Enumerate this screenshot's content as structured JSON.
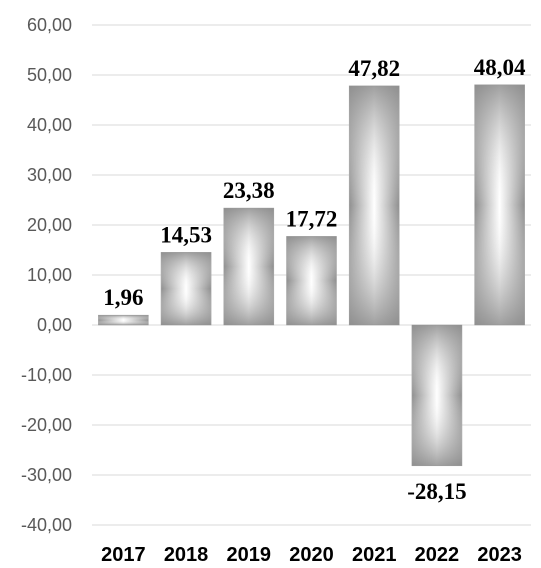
{
  "chart_data": {
    "type": "bar",
    "title": "",
    "xlabel": "",
    "ylabel": "",
    "categories": [
      "2017",
      "2018",
      "2019",
      "2020",
      "2021",
      "2022",
      "2023"
    ],
    "values": [
      1.96,
      14.53,
      23.38,
      17.72,
      47.82,
      -28.15,
      48.04
    ],
    "data_labels": [
      "1,96",
      "14,53",
      "23,38",
      "17,72",
      "47,82",
      "-28,15",
      "48,04"
    ],
    "yticks": [
      60,
      50,
      40,
      30,
      20,
      10,
      0,
      -10,
      -20,
      -30,
      -40
    ],
    "ytick_labels": [
      "60,00",
      "50,00",
      "40,00",
      "30,00",
      "20,00",
      "10,00",
      "0,00",
      "-10,00",
      "-20,00",
      "-30,00",
      "-40,00"
    ],
    "ylim": [
      -40,
      60
    ],
    "grid": true,
    "legend": "none",
    "colors": {
      "bar_edge": "#9a9a9a",
      "bar_center": "#ffffff",
      "grid": "#d9d9d9",
      "tick_text": "#595959",
      "label_text": "#000000"
    }
  }
}
